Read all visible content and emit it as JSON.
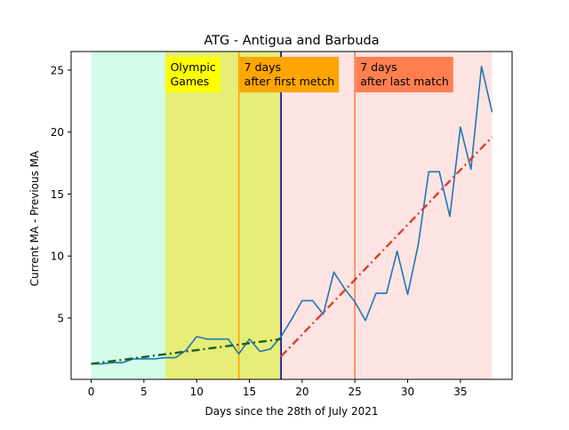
{
  "chart_data": {
    "type": "line",
    "title": "ATG - Antigua and Barbuda",
    "xlabel": "Days since the 28th of July 2021",
    "ylabel": "Current MA - Previous MA",
    "xlim": [
      -1.9,
      39.9
    ],
    "ylim": [
      0.05,
      26.5
    ],
    "xticks": [
      0,
      5,
      10,
      15,
      20,
      25,
      30,
      35
    ],
    "yticks": [
      5,
      10,
      15,
      20,
      25
    ],
    "grid": false,
    "regions": [
      {
        "x0": 0,
        "x1": 7,
        "color": "#d3fde9"
      },
      {
        "x0": 7,
        "x1": 18,
        "color": "#e6ee78"
      },
      {
        "x0": 18,
        "x1": 38,
        "color": "#fde4e3"
      }
    ],
    "vlines": [
      {
        "x": 14,
        "color": "#ffa500"
      },
      {
        "x": 18,
        "color": "#0000aa"
      },
      {
        "x": 25,
        "color": "#ff7f50"
      }
    ],
    "annotations": [
      {
        "lines": [
          "Olympic",
          "Games"
        ],
        "x": 7,
        "y": 25.5,
        "bg": "#ffff00"
      },
      {
        "lines": [
          "7 days",
          "after first metch"
        ],
        "x": 14,
        "y": 25.5,
        "bg": "#ffa500"
      },
      {
        "lines": [
          "7 days",
          "after last match"
        ],
        "x": 25,
        "y": 25.5,
        "bg": "#ff7f50"
      }
    ],
    "series": [
      {
        "color": "#1f77b4",
        "style": "solid",
        "x": [
          0,
          1,
          2,
          3,
          4,
          5,
          6,
          7,
          8,
          9,
          10,
          11,
          12,
          13,
          14,
          15,
          16,
          17,
          18,
          19,
          20,
          21,
          22,
          23,
          24,
          25,
          26,
          27,
          28,
          29,
          30,
          31,
          32,
          33,
          34,
          35,
          36,
          37,
          38
        ],
        "y": [
          1.3,
          1.3,
          1.4,
          1.4,
          1.7,
          1.7,
          1.7,
          1.8,
          1.8,
          2.4,
          3.5,
          3.3,
          3.3,
          3.3,
          2.1,
          3.3,
          2.3,
          2.5,
          3.5,
          4.9,
          6.4,
          6.4,
          5.3,
          8.7,
          7.4,
          6.3,
          4.8,
          7.0,
          7.0,
          10.4,
          6.9,
          10.9,
          16.8,
          16.8,
          13.2,
          20.4,
          17.0,
          25.3,
          21.6
        ]
      },
      {
        "color": "#1a5e20",
        "style": "dashdot",
        "x": [
          0,
          18
        ],
        "y": [
          1.3,
          3.3
        ]
      },
      {
        "color": "#d9412a",
        "style": "dashdot",
        "x": [
          18,
          38
        ],
        "y": [
          1.9,
          19.6
        ]
      }
    ]
  }
}
